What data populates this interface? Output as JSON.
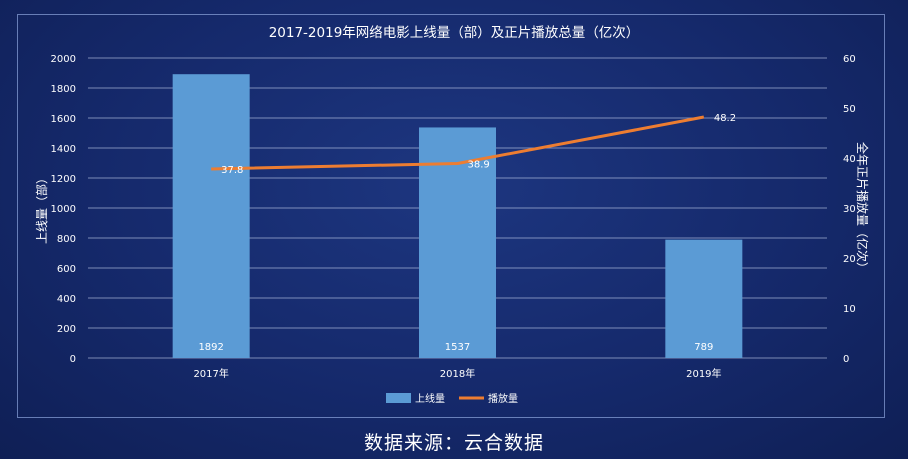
{
  "chart_data": {
    "type": "bar+line",
    "title": "2017-2019年网络电影上线量（部）及正片播放总量（亿次）",
    "categories": [
      "2017年",
      "2018年",
      "2019年"
    ],
    "series": [
      {
        "name": "上线量",
        "type": "bar",
        "axis": "left",
        "color": "#5b9bd5",
        "values": [
          1892,
          1537,
          789
        ]
      },
      {
        "name": "播放量",
        "type": "line",
        "axis": "right",
        "color": "#ed7d31",
        "values": [
          37.8,
          38.9,
          48.2
        ]
      }
    ],
    "ylabel_left": "上线量（部）",
    "ylabel_right": "全年正片播放量（亿次）",
    "ylim_left": [
      0,
      2000
    ],
    "yticks_left": [
      "0",
      "200",
      "400",
      "600",
      "800",
      "1000",
      "1200",
      "1400",
      "1600",
      "1800",
      "2000"
    ],
    "ylim_right": [
      0,
      60
    ],
    "yticks_right": [
      "0",
      "10",
      "20",
      "30",
      "40",
      "50",
      "60"
    ],
    "grid": true,
    "legend_position": "bottom"
  },
  "source_text": "数据来源：云合数据"
}
